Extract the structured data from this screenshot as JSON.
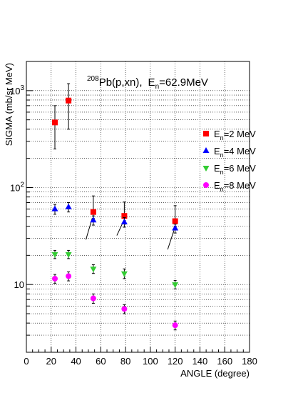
{
  "chart_data": {
    "type": "scatter",
    "title_parts": {
      "sup": "208",
      "nucleus": "Pb(p,xn),",
      "energy_pre": "E",
      "energy_sub": "n",
      "energy_post": "=62.9MeV"
    },
    "xlabel": "ANGLE   (degree)",
    "ylabel": "SIGMA  (mb/sr MeV)",
    "x_ticks": [
      "0",
      "20",
      "40",
      "60",
      "80",
      "100",
      "120",
      "140",
      "160",
      "180"
    ],
    "y_tick_labels": [
      "10",
      "10",
      "10"
    ],
    "y_tick_exponents": [
      "",
      "2",
      "3"
    ],
    "xlim": [
      0,
      180
    ],
    "ylim": [
      2,
      2000
    ],
    "y_scale": "log",
    "grid": true,
    "legend_position": "right",
    "series": [
      {
        "legend_pre": "E",
        "legend_sub": "n",
        "legend_post": "=2 MeV",
        "marker": "square",
        "color": "#ff0000",
        "x": [
          23,
          34,
          54,
          79,
          120
        ],
        "y": [
          470,
          790,
          56,
          51,
          45
        ],
        "err_lo": [
          220,
          390,
          8,
          6,
          5
        ],
        "err_hi": [
          230,
          390,
          26,
          20,
          20
        ]
      },
      {
        "legend_pre": "E",
        "legend_sub": "n",
        "legend_post": "=4 MeV",
        "marker": "triangle-up",
        "color": "#0000ff",
        "x": [
          23,
          34,
          54,
          79,
          120
        ],
        "y": [
          60,
          63,
          46,
          44,
          38
        ],
        "err_lo": [
          7,
          7,
          5,
          5,
          4
        ],
        "err_hi": [
          7,
          7,
          5,
          5,
          4
        ]
      },
      {
        "legend_pre": "E",
        "legend_sub": "n",
        "legend_post": "=6 MeV",
        "marker": "triangle-down",
        "color": "#33cc33",
        "x": [
          23,
          34,
          54,
          79,
          120
        ],
        "y": [
          20.5,
          20.5,
          14.5,
          13,
          10
        ],
        "err_lo": [
          2,
          2,
          1.5,
          1.5,
          1
        ],
        "err_hi": [
          2,
          2,
          1.5,
          1.5,
          1
        ]
      },
      {
        "legend_pre": "E",
        "legend_sub": "n",
        "legend_post": "=8 MeV",
        "marker": "circle",
        "color": "#ff00ff",
        "x": [
          23,
          34,
          54,
          79,
          120
        ],
        "y": [
          11.5,
          12.2,
          7.2,
          5.6,
          3.8
        ],
        "err_lo": [
          1.2,
          1.3,
          0.8,
          0.6,
          0.4
        ],
        "err_hi": [
          1.2,
          1.3,
          0.8,
          0.6,
          0.4
        ]
      }
    ],
    "curves": [
      {
        "x": [
          48,
          53
        ],
        "y": [
          29,
          48
        ]
      },
      {
        "x": [
          73,
          78
        ],
        "y": [
          32,
          44
        ]
      },
      {
        "x": [
          114,
          119
        ],
        "y": [
          23,
          36
        ]
      }
    ]
  }
}
